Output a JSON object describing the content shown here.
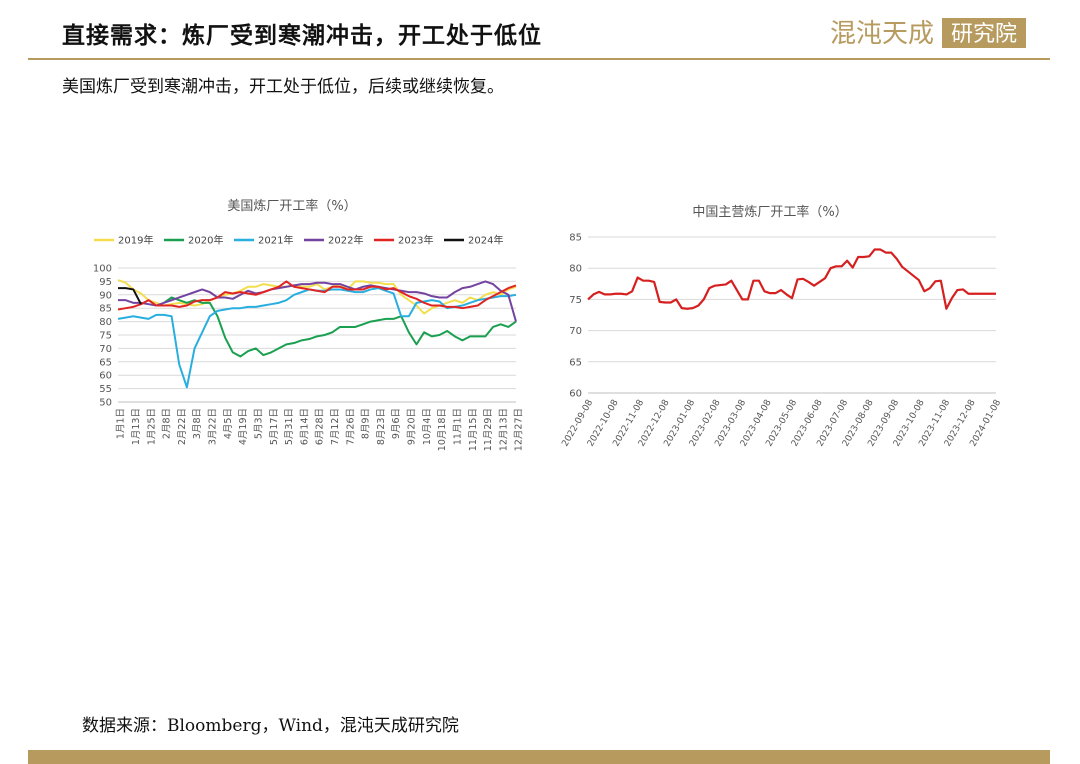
{
  "header": {
    "title": "直接需求：炼厂受到寒潮冲击，开工处于低位",
    "logo_text": "混沌天成",
    "logo_box_text": "研究院",
    "accent_color": "#b79a5e"
  },
  "subtitle": "美国炼厂受到寒潮冲击，开工处于低位，后续或继续恢复。",
  "source": "数据来源：Bloomberg，Wind，混沌天成研究院",
  "chart_data": [
    {
      "type": "line",
      "title": "美国炼厂开工率（%）",
      "ylim": [
        50,
        100
      ],
      "yticks": [
        100,
        95,
        90,
        85,
        80,
        75,
        70,
        65,
        60,
        55,
        50
      ],
      "x_count": 53,
      "xtick_labels": [
        "1月1日",
        "1月13日",
        "1月25日",
        "2月8日",
        "2月22日",
        "3月8日",
        "3月22日",
        "4月5日",
        "4月19日",
        "5月3日",
        "5月17日",
        "5月31日",
        "6月14日",
        "6月28日",
        "7月12日",
        "7月26日",
        "8月9日",
        "8月23日",
        "9月6日",
        "9月20日",
        "10月4日",
        "10月18日",
        "11月1日",
        "11月15日",
        "11月29日",
        "12月13日",
        "12月27日"
      ],
      "legend_position": "top",
      "series": [
        {
          "name": "2019年",
          "color": "#f2de4f",
          "values": [
            95.5,
            94.5,
            92,
            90.5,
            88,
            87,
            86,
            86.5,
            87,
            86.5,
            86,
            86.5,
            88,
            89,
            90,
            90.5,
            91.5,
            93,
            93,
            94,
            93.5,
            93,
            93,
            93.5,
            93,
            93,
            94,
            92,
            93,
            94,
            92,
            95,
            95,
            94.5,
            94.5,
            94,
            94,
            90,
            88,
            86,
            83,
            85,
            86,
            87,
            88,
            87,
            89,
            88,
            90,
            91,
            90,
            92,
            93
          ]
        },
        {
          "name": "2020年",
          "color": "#1aa050",
          "values": [
            null,
            null,
            null,
            null,
            null,
            null,
            87,
            89,
            88,
            87,
            88,
            87,
            87,
            82,
            74,
            68.5,
            67,
            69,
            70,
            67.5,
            68.5,
            70,
            71.5,
            72,
            73,
            73.5,
            74.5,
            75,
            76,
            78,
            78,
            78,
            79,
            80,
            80.5,
            81,
            81,
            82,
            76,
            71.5,
            76,
            74.5,
            75,
            76.5,
            74.5,
            73,
            74.5,
            74.5,
            74.5,
            78,
            79,
            78,
            80
          ]
        },
        {
          "name": "2021年",
          "color": "#29aee0",
          "values": [
            81,
            81.5,
            82,
            81.5,
            81,
            82.5,
            82.5,
            82,
            64,
            55.5,
            70,
            76,
            82,
            84,
            84.5,
            85,
            85,
            85.5,
            85.5,
            86,
            86.5,
            87,
            88,
            90,
            91,
            92,
            91.5,
            91.5,
            92,
            92,
            91.5,
            91,
            91,
            92,
            92.5,
            91.5,
            90.5,
            82,
            82,
            87,
            87.5,
            88,
            87.5,
            85,
            85.5,
            86,
            87,
            88,
            88.5,
            89,
            89.5,
            89.5,
            90
          ]
        },
        {
          "name": "2022年",
          "color": "#7443a0",
          "values": [
            88,
            88,
            87,
            87,
            86.5,
            86,
            87,
            88,
            89,
            90,
            91,
            92,
            91,
            89,
            89,
            88.5,
            90,
            91.5,
            90.5,
            91,
            92,
            92.5,
            93,
            93.5,
            94,
            94,
            94.5,
            94.5,
            94,
            94,
            93,
            92,
            93,
            93.5,
            93,
            92.5,
            92,
            91.5,
            91,
            91,
            90.5,
            89.5,
            89,
            89,
            91,
            92.5,
            93,
            94,
            95,
            94,
            91.5,
            90,
            80
          ]
        },
        {
          "name": "2023年",
          "color": "#e02424",
          "values": [
            84.5,
            85,
            85.5,
            86.5,
            88,
            86,
            86,
            86,
            85.5,
            86,
            87.5,
            88,
            88,
            89,
            91,
            90.5,
            91,
            90.5,
            90,
            91,
            92,
            93,
            95,
            93,
            92.5,
            92,
            91.5,
            91,
            93,
            93,
            92,
            92,
            92,
            93,
            93,
            92,
            92.5,
            91,
            89.5,
            88.5,
            87,
            86,
            86,
            85.5,
            85.5,
            85,
            85.5,
            86,
            88,
            89.5,
            91,
            92.5,
            93.5
          ]
        },
        {
          "name": "2024年",
          "color": "#111111",
          "values": [
            92.5,
            92.5,
            92,
            86.5
          ]
        }
      ]
    },
    {
      "type": "line",
      "title": "中国主营炼厂开工率（%）",
      "ylim": [
        60,
        85
      ],
      "yticks": [
        85,
        80,
        75,
        70,
        65,
        60
      ],
      "x_count": 75,
      "xtick_labels": [
        "2022-09-08",
        "2022-10-08",
        "2022-11-08",
        "2022-12-08",
        "2023-01-08",
        "2023-02-08",
        "2023-03-08",
        "2023-04-08",
        "2023-05-08",
        "2023-06-08",
        "2023-07-08",
        "2023-08-08",
        "2023-09-08",
        "2023-10-08",
        "2023-11-08",
        "2023-12-08",
        "2024-01-08"
      ],
      "series": [
        {
          "name": "",
          "color": "#d62020",
          "values": [
            75,
            75.8,
            76.2,
            75.8,
            75.8,
            75.9,
            75.9,
            75.8,
            76.3,
            78.5,
            78,
            78,
            77.8,
            74.6,
            74.5,
            74.5,
            75,
            73.6,
            73.5,
            73.6,
            74,
            75,
            76.8,
            77.2,
            77.3,
            77.4,
            78,
            76.5,
            75,
            75,
            78,
            78,
            76.3,
            76,
            76,
            76.5,
            75.8,
            75.2,
            78.2,
            78.3,
            77.8,
            77.2,
            77.8,
            78.4,
            80,
            80.3,
            80.3,
            81.2,
            80.1,
            81.8,
            81.8,
            81.9,
            83,
            83,
            82.5,
            82.5,
            81.5,
            80.2,
            79.5,
            78.8,
            78.1,
            76.3,
            76.8,
            77.9,
            78,
            73.5,
            75.2,
            76.5,
            76.6,
            75.9,
            75.9,
            75.9,
            75.9,
            75.9,
            75.9
          ]
        }
      ]
    }
  ]
}
